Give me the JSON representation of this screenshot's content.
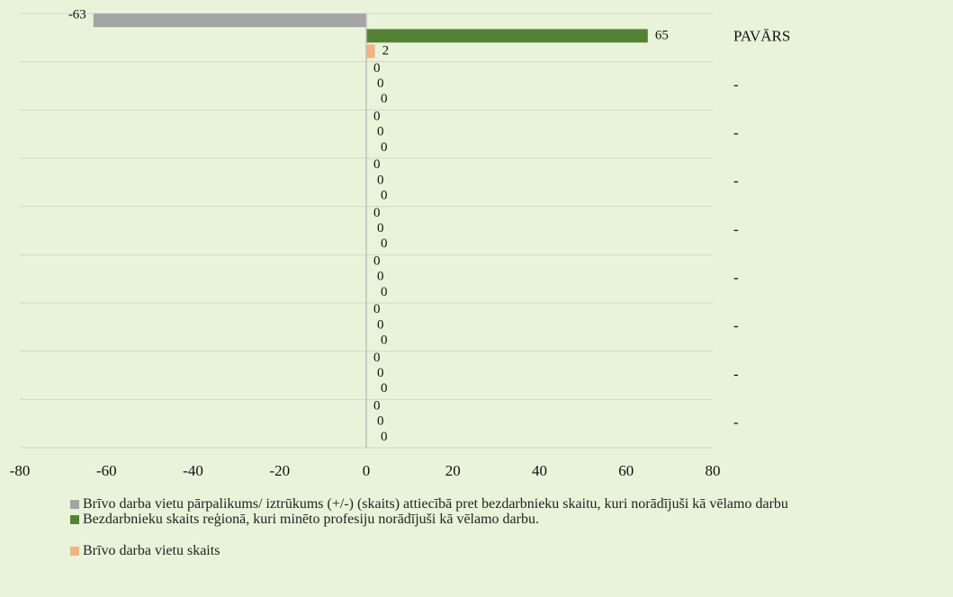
{
  "chart_data": {
    "type": "bar",
    "orientation": "horizontal",
    "categories": [
      "PAVĀRS",
      "-",
      "-",
      "-",
      "-",
      "-",
      "-",
      "-",
      "-"
    ],
    "series": [
      {
        "name": "Brīvo darba vietu pārpalikums/ iztrūkums (+/-) (skaits) attiecībā pret bezdarbnieku skaitu, kuri norādījuši kā vēlamo darbu",
        "color": "#a5a5a5",
        "values": [
          -63,
          0,
          0,
          0,
          0,
          0,
          0,
          0,
          0
        ]
      },
      {
        "name": "Bezdarbnieku skaits reģionā, kuri minēto profesiju norādījuši kā vēlamo darbu.",
        "color": "#548235",
        "values": [
          65,
          0,
          0,
          0,
          0,
          0,
          0,
          0,
          0
        ]
      },
      {
        "name": "Brīvo darba vietu skaits",
        "color": "#f4b183",
        "values": [
          2,
          0,
          0,
          0,
          0,
          0,
          0,
          0,
          0
        ]
      }
    ],
    "xlim": [
      -80,
      80
    ],
    "xticks": [
      -80,
      -60,
      -40,
      -20,
      0,
      20,
      40,
      60,
      80
    ],
    "legend": "bottom"
  }
}
